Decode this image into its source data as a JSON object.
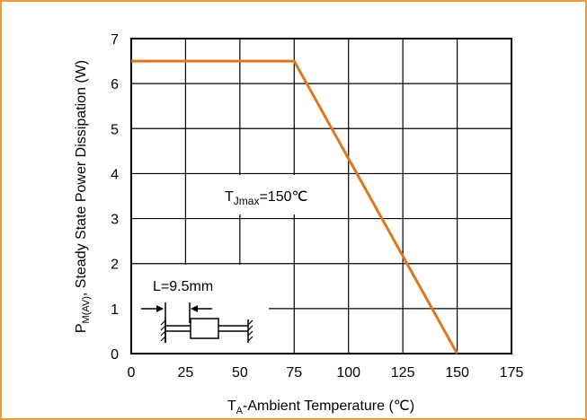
{
  "chart_data": {
    "type": "line",
    "xlabel": {
      "main": "T",
      "sub": "A",
      "rest": "-Ambient Temperature (℃)"
    },
    "ylabel": {
      "main": "P",
      "sub": "M(AV)",
      "rest": ", Steady State Power Dissipation (W)"
    },
    "xlim": [
      0,
      175
    ],
    "ylim": [
      0,
      7
    ],
    "xticks": [
      0,
      25,
      50,
      75,
      100,
      125,
      150,
      175
    ],
    "yticks": [
      0,
      1,
      2,
      3,
      4,
      5,
      6,
      7
    ],
    "grid": true,
    "series": [
      {
        "x": [
          0,
          75,
          150
        ],
        "y": [
          6.5,
          6.5,
          0
        ]
      }
    ],
    "annotations": {
      "tj": {
        "main": "T",
        "sub": "Jmax",
        "rest": "=150℃"
      },
      "lead": {
        "text": "L=9.5mm"
      }
    },
    "colors": {
      "frame": "#F39A2E",
      "line": "#E0761E",
      "grid": "#000000"
    }
  }
}
